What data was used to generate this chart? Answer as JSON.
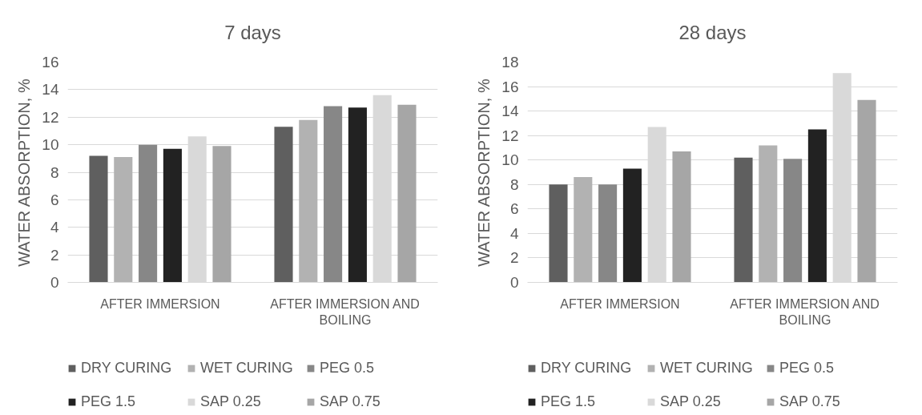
{
  "chart_data": [
    {
      "type": "bar",
      "title": "7 days",
      "ylabel": "WATER ABSORPTION, %",
      "categories": [
        "AFTER IMMERSION",
        "AFTER IMMERSION AND BOILING"
      ],
      "series": [
        {
          "name": "DRY CURING",
          "color": "#5f5f5f",
          "values": [
            9.2,
            11.3
          ]
        },
        {
          "name": "WET CURING",
          "color": "#b2b2b2",
          "values": [
            9.1,
            11.8
          ]
        },
        {
          "name": "PEG 0.5",
          "color": "#878787",
          "values": [
            10.0,
            12.8
          ]
        },
        {
          "name": "PEG 1.5",
          "color": "#222222",
          "values": [
            9.7,
            12.7
          ]
        },
        {
          "name": "SAP 0.25",
          "color": "#d9d9d9",
          "values": [
            10.6,
            13.6
          ]
        },
        {
          "name": "SAP 0.75",
          "color": "#a6a6a6",
          "values": [
            9.9,
            12.9
          ]
        }
      ],
      "ylim": [
        0,
        16
      ],
      "yticks": [
        0,
        2,
        4,
        6,
        8,
        10,
        12,
        14,
        16
      ],
      "grid": "y",
      "legend": "bottom"
    },
    {
      "type": "bar",
      "title": "28 days",
      "ylabel": "WATER ABSORPTION, %",
      "categories": [
        "AFTER IMMERSION",
        "AFTER IMMERSION AND BOILING"
      ],
      "series": [
        {
          "name": "DRY CURING",
          "color": "#5f5f5f",
          "values": [
            8.0,
            10.2
          ]
        },
        {
          "name": "WET CURING",
          "color": "#b2b2b2",
          "values": [
            8.6,
            11.2
          ]
        },
        {
          "name": "PEG 0.5",
          "color": "#878787",
          "values": [
            8.0,
            10.1
          ]
        },
        {
          "name": "PEG 1.5",
          "color": "#222222",
          "values": [
            9.3,
            12.5
          ]
        },
        {
          "name": "SAP 0.25",
          "color": "#d9d9d9",
          "values": [
            12.7,
            17.1
          ]
        },
        {
          "name": "SAP 0.75",
          "color": "#a6a6a6",
          "values": [
            10.7,
            14.9
          ]
        }
      ],
      "ylim": [
        0,
        18
      ],
      "yticks": [
        0,
        2,
        4,
        6,
        8,
        10,
        12,
        14,
        16,
        18
      ],
      "grid": "y",
      "legend": "bottom"
    }
  ]
}
